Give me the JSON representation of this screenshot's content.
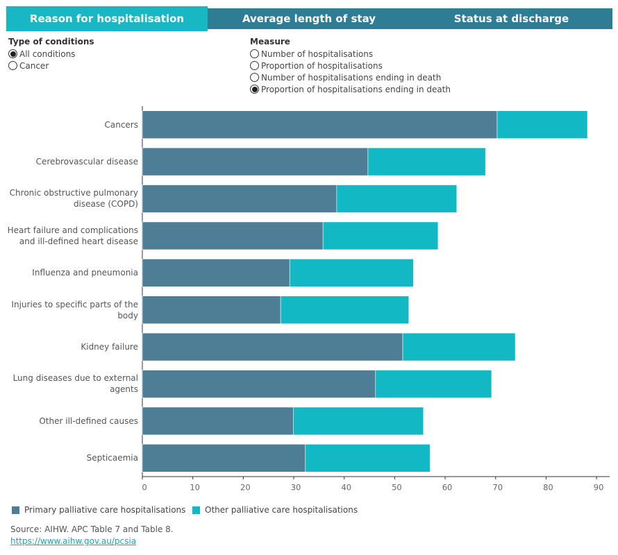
{
  "tabs": [
    "Reason for hospitalisation",
    "Average length of stay",
    "Status at discharge"
  ],
  "filters": [
    {
      "title": "Type of conditions",
      "options": [
        "All conditions",
        "Cancer"
      ]
    },
    {
      "title": "Measure",
      "options": [
        "Number of hospitalisations",
        "Proportion of hospitalisations",
        "Number of hospitalisations ending in death",
        "Proportion of hospitalisations ending in death"
      ]
    }
  ],
  "chart_data": {
    "type": "bar",
    "orientation": "horizontal",
    "stacked": true,
    "categories": [
      "Cancers",
      "Cerebrovascular disease",
      "Chronic obstructive pulmonary disease (COPD)",
      "Heart failure and complications and ill-defined heart disease",
      "Influenza and pneumonia",
      "Injuries to specific parts of the body",
      "Kidney failure",
      "Lung diseases due to external agents",
      "Other ill-defined causes",
      "Septicaemia"
    ],
    "series": [
      {
        "name": "Primary palliative care hospitalisations",
        "color": "#4e7d96",
        "values": [
          70.3,
          44.7,
          38.5,
          35.8,
          29.2,
          27.4,
          51.6,
          46.2,
          29.9,
          32.3
        ]
      },
      {
        "name": "Other palliative care hospitalisations",
        "color": "#12b9c5",
        "values": [
          17.9,
          23.3,
          23.8,
          22.8,
          24.5,
          25.4,
          22.3,
          23.0,
          25.8,
          24.7
        ]
      }
    ],
    "xlim": [
      0,
      92.6
    ],
    "xticks": [
      0,
      10,
      20,
      30,
      40,
      50,
      60,
      70,
      80,
      90
    ],
    "grid": false
  },
  "source": "Source: AIHW. APC Table 7 and Table 8.",
  "link": "https://www.aihw.gov.au/pcsia"
}
